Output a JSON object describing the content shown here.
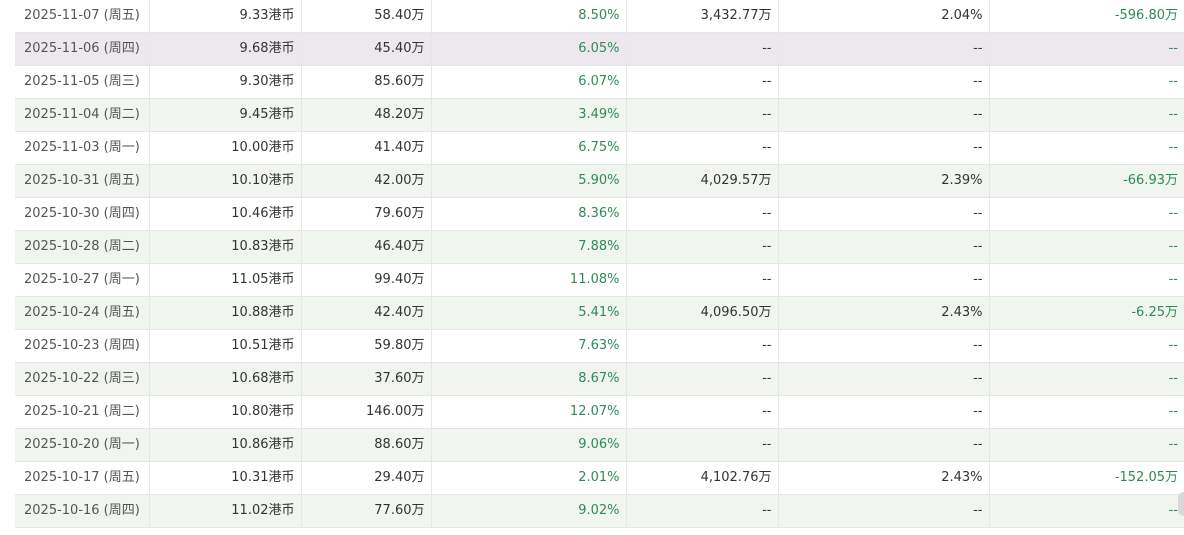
{
  "rows": [
    {
      "date": "2025-11-07 (周五)",
      "price": "9.33港币",
      "volume": "58.40万",
      "ratio": "8.50%",
      "total": "3,432.77万",
      "pct": "2.04%",
      "change": "-596.80万"
    },
    {
      "date": "2025-11-06 (周四)",
      "price": "9.68港币",
      "volume": "45.40万",
      "ratio": "6.05%",
      "total": "--",
      "pct": "--",
      "change": "--"
    },
    {
      "date": "2025-11-05 (周三)",
      "price": "9.30港币",
      "volume": "85.60万",
      "ratio": "6.07%",
      "total": "--",
      "pct": "--",
      "change": "--"
    },
    {
      "date": "2025-11-04 (周二)",
      "price": "9.45港币",
      "volume": "48.20万",
      "ratio": "3.49%",
      "total": "--",
      "pct": "--",
      "change": "--"
    },
    {
      "date": "2025-11-03 (周一)",
      "price": "10.00港币",
      "volume": "41.40万",
      "ratio": "6.75%",
      "total": "--",
      "pct": "--",
      "change": "--"
    },
    {
      "date": "2025-10-31 (周五)",
      "price": "10.10港币",
      "volume": "42.00万",
      "ratio": "5.90%",
      "total": "4,029.57万",
      "pct": "2.39%",
      "change": "-66.93万"
    },
    {
      "date": "2025-10-30 (周四)",
      "price": "10.46港币",
      "volume": "79.60万",
      "ratio": "8.36%",
      "total": "--",
      "pct": "--",
      "change": "--"
    },
    {
      "date": "2025-10-28 (周二)",
      "price": "10.83港币",
      "volume": "46.40万",
      "ratio": "7.88%",
      "total": "--",
      "pct": "--",
      "change": "--"
    },
    {
      "date": "2025-10-27 (周一)",
      "price": "11.05港币",
      "volume": "99.40万",
      "ratio": "11.08%",
      "total": "--",
      "pct": "--",
      "change": "--"
    },
    {
      "date": "2025-10-24 (周五)",
      "price": "10.88港币",
      "volume": "42.40万",
      "ratio": "5.41%",
      "total": "4,096.50万",
      "pct": "2.43%",
      "change": "-6.25万"
    },
    {
      "date": "2025-10-23 (周四)",
      "price": "10.51港币",
      "volume": "59.80万",
      "ratio": "7.63%",
      "total": "--",
      "pct": "--",
      "change": "--"
    },
    {
      "date": "2025-10-22 (周三)",
      "price": "10.68港币",
      "volume": "37.60万",
      "ratio": "8.67%",
      "total": "--",
      "pct": "--",
      "change": "--"
    },
    {
      "date": "2025-10-21 (周二)",
      "price": "10.80港币",
      "volume": "146.00万",
      "ratio": "12.07%",
      "total": "--",
      "pct": "--",
      "change": "--"
    },
    {
      "date": "2025-10-20 (周一)",
      "price": "10.86港币",
      "volume": "88.60万",
      "ratio": "9.06%",
      "total": "--",
      "pct": "--",
      "change": "--"
    },
    {
      "date": "2025-10-17 (周五)",
      "price": "10.31港币",
      "volume": "29.40万",
      "ratio": "2.01%",
      "total": "4,102.76万",
      "pct": "2.43%",
      "change": "-152.05万"
    },
    {
      "date": "2025-10-16 (周四)",
      "price": "11.02港币",
      "volume": "77.60万",
      "ratio": "9.02%",
      "total": "--",
      "pct": "--",
      "change": "--"
    }
  ],
  "colors": {
    "accent_green": "#2e8b57",
    "row_alt": "#f0f5f0",
    "row_highlight": "#ede8ee",
    "border": "#e6e6e6"
  }
}
